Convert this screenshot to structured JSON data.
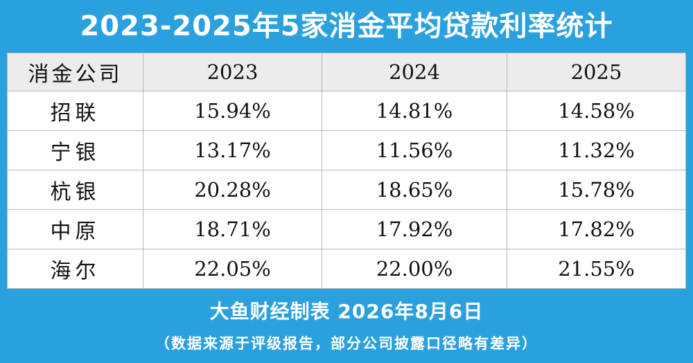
{
  "title": "2023-2025年5家消金平均贷款利率统计",
  "table": {
    "headers": [
      "消金公司",
      "2023",
      "2024",
      "2025"
    ],
    "rows": [
      {
        "company": "招联",
        "y2023": "15.94%",
        "y2024": "14.81%",
        "y2025": "14.58%"
      },
      {
        "company": "宁银",
        "y2023": "13.17%",
        "y2024": "11.56%",
        "y2025": "11.32%"
      },
      {
        "company": "杭银",
        "y2023": "20.28%",
        "y2024": "18.65%",
        "y2025": "15.78%"
      },
      {
        "company": "中原",
        "y2023": "18.71%",
        "y2024": "17.92%",
        "y2025": "17.82%"
      },
      {
        "company": "海尔",
        "y2023": "22.05%",
        "y2024": "22.00%",
        "y2025": "21.55%"
      }
    ]
  },
  "footer": {
    "credit": "大鱼财经制表 2026年8月6日",
    "note": "（数据来源于评级报告，部分公司披露口径略有差异）"
  },
  "colors": {
    "background": "#2aa0de",
    "header_row": "#ececec",
    "cell": "#ffffff",
    "text": "#111111"
  }
}
